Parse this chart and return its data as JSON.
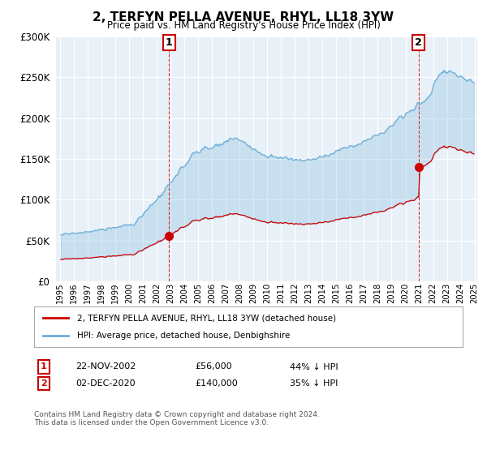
{
  "title": "2, TERFYN PELLA AVENUE, RHYL, LL18 3YW",
  "subtitle": "Price paid vs. HM Land Registry's House Price Index (HPI)",
  "hpi_color": "#6baed6",
  "hpi_fill_color": "#ddeeff",
  "price_color": "#cc0000",
  "sale1_date": "22-NOV-2002",
  "sale1_price": "£56,000",
  "sale1_pct": "44% ↓ HPI",
  "sale2_date": "02-DEC-2020",
  "sale2_price": "£140,000",
  "sale2_pct": "35% ↓ HPI",
  "legend1": "2, TERFYN PELLA AVENUE, RHYL, LL18 3YW (detached house)",
  "legend2": "HPI: Average price, detached house, Denbighshire",
  "footer": "Contains HM Land Registry data © Crown copyright and database right 2024.\nThis data is licensed under the Open Government Licence v3.0.",
  "ylim_max": 300000
}
